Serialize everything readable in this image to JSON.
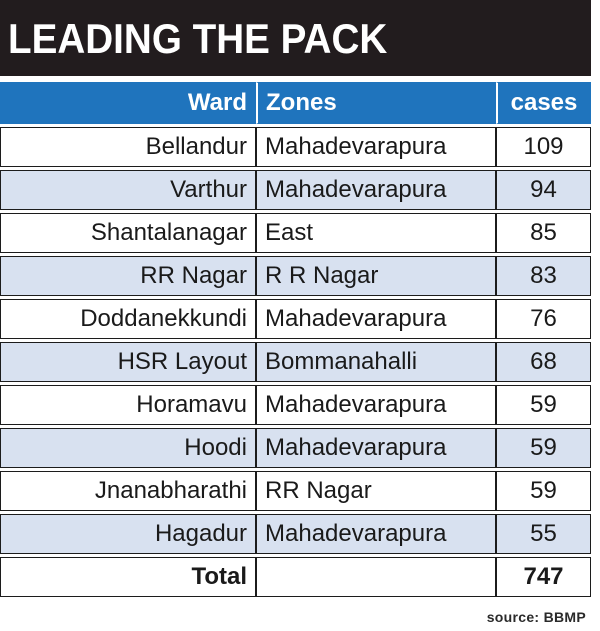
{
  "title": "LEADING THE PACK",
  "source": "source: BBMP",
  "chart_data": {
    "type": "table",
    "title": "LEADING THE PACK",
    "columns": [
      "Ward",
      "Zones",
      "cases"
    ],
    "rows": [
      {
        "ward": "Bellandur",
        "zone": "Mahadevarapura",
        "cases": 109
      },
      {
        "ward": "Varthur",
        "zone": "Mahadevarapura",
        "cases": 94
      },
      {
        "ward": "Shantalanagar",
        "zone": "East",
        "cases": 85
      },
      {
        "ward": "RR Nagar",
        "zone": "R R Nagar",
        "cases": 83
      },
      {
        "ward": "Doddanekkundi",
        "zone": "Mahadevarapura",
        "cases": 76
      },
      {
        "ward": "HSR Layout",
        "zone": "Bommanahalli",
        "cases": 68
      },
      {
        "ward": "Horamavu",
        "zone": "Mahadevarapura",
        "cases": 59
      },
      {
        "ward": "Hoodi",
        "zone": "Mahadevarapura",
        "cases": 59
      },
      {
        "ward": "Jnanabharathi",
        "zone": "RR Nagar",
        "cases": 59
      },
      {
        "ward": "Hagadur",
        "zone": "Mahadevarapura",
        "cases": 55
      }
    ],
    "total": {
      "label": "Total",
      "zone": "",
      "cases": 747
    }
  },
  "colors": {
    "title_background": "#221c1e",
    "header_background": "#1f74bd",
    "alternate_row": "#d8e1f0"
  }
}
